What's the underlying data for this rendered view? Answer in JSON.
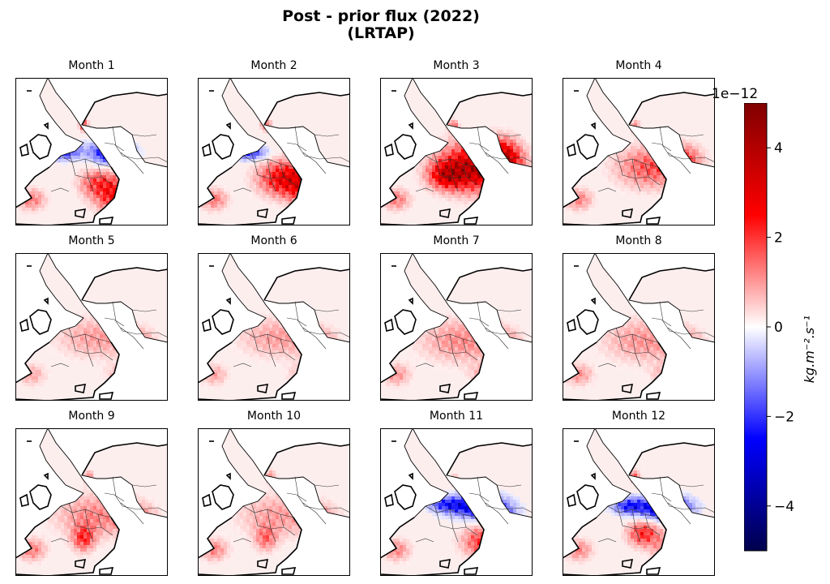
{
  "title_line1": "Post - prior flux (2022)",
  "title_line2": "(LRTAP)",
  "chart_data": {
    "type": "heatmap",
    "title": "Post - prior flux (2022) (LRTAP)",
    "panels": [
      {
        "label": "Month 1",
        "month": 1,
        "pattern": "strong negative NW Europe / Germany, strong positive SE Europe"
      },
      {
        "label": "Month 2",
        "month": 2,
        "pattern": "negative Benelux / N Germany, strong positive central & SE Europe"
      },
      {
        "label": "Month 3",
        "month": 3,
        "pattern": "strong positive central & eastern Europe"
      },
      {
        "label": "Month 4",
        "month": 4,
        "pattern": "moderate positive central Europe"
      },
      {
        "label": "Month 5",
        "month": 5,
        "pattern": "weak positive widespread, strong UK"
      },
      {
        "label": "Month 6",
        "month": 6,
        "pattern": "weak positive widespread"
      },
      {
        "label": "Month 7",
        "month": 7,
        "pattern": "weak positive widespread, strong UK"
      },
      {
        "label": "Month 8",
        "month": 8,
        "pattern": "weak positive widespread, strong UK"
      },
      {
        "label": "Month 9",
        "month": 9,
        "pattern": "weak positive widespread, strong UK, Italy"
      },
      {
        "label": "Month 10",
        "month": 10,
        "pattern": "weak positive widespread, strong UK"
      },
      {
        "label": "Month 11",
        "month": 11,
        "pattern": "strong negative Germany / Poland, positive SE Europe"
      },
      {
        "label": "Month 12",
        "month": 12,
        "pattern": "strong negative Germany / Poland, positive Italy & SE Europe"
      }
    ],
    "colorbar": {
      "colormap": "seismic",
      "range": [
        -5,
        5
      ],
      "ticks": [
        4,
        2,
        0,
        -2,
        -4
      ],
      "tick_labels": [
        "4",
        "2",
        "0",
        "−2",
        "−4"
      ],
      "scale_factor_label": "1e−12",
      "label": "kg.m⁻².s⁻¹",
      "colors": {
        "min": "#00004c",
        "mid": "#ffffff",
        "max": "#800000"
      }
    }
  }
}
